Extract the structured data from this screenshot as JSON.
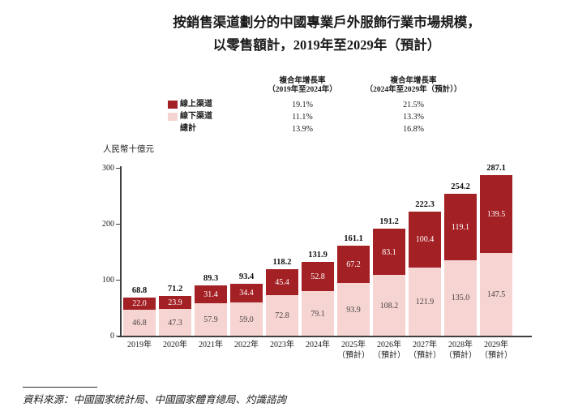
{
  "title": {
    "line1": "按銷售渠道劃分的中國專業戶外服飾行業市場規模，",
    "line2": "以零售額計，2019年至2029年（預計）"
  },
  "cagr_table": {
    "col1_header_line1": "複合年增長率",
    "col1_header_line2": "（2019年至2024年）",
    "col2_header_line1": "複合年增長率",
    "col2_header_line2": "（2024年至2029年（預計））",
    "rows": [
      {
        "label": "線上渠道",
        "swatch_color": "#A32025",
        "cagr_2019_2024": "19.1%",
        "cagr_2024_2029": "21.5%"
      },
      {
        "label": "線下渠道",
        "swatch_color": "#F5D4D2",
        "cagr_2019_2024": "11.1%",
        "cagr_2024_2029": "13.3%"
      },
      {
        "label": "總計",
        "swatch_color": "",
        "cagr_2019_2024": "13.9%",
        "cagr_2024_2029": "16.8%"
      }
    ]
  },
  "chart_data": {
    "type": "bar",
    "subtype": "stacked",
    "unit_label": "人民幣十億元",
    "ylim": [
      0,
      300
    ],
    "yticks": [
      0,
      100,
      200,
      300
    ],
    "grid": false,
    "legend_position": "top-left",
    "categories": [
      {
        "label": "2019年",
        "sublabel": ""
      },
      {
        "label": "2020年",
        "sublabel": ""
      },
      {
        "label": "2021年",
        "sublabel": ""
      },
      {
        "label": "2022年",
        "sublabel": ""
      },
      {
        "label": "2023年",
        "sublabel": ""
      },
      {
        "label": "2024年",
        "sublabel": ""
      },
      {
        "label": "2025年",
        "sublabel": "（預計）"
      },
      {
        "label": "2026年",
        "sublabel": "（預計）"
      },
      {
        "label": "2027年",
        "sublabel": "（預計）"
      },
      {
        "label": "2028年",
        "sublabel": "（預計）"
      },
      {
        "label": "2029年",
        "sublabel": "（預計）"
      }
    ],
    "series": [
      {
        "name": "線上渠道",
        "color": "#A32025",
        "label_color": "#FFFFFF",
        "values": [
          22.0,
          23.9,
          31.4,
          34.4,
          45.4,
          52.8,
          67.2,
          83.1,
          100.4,
          119.1,
          139.5
        ]
      },
      {
        "name": "線下渠道",
        "color": "#F5D4D2",
        "label_color": "#4A4444",
        "values": [
          46.8,
          47.3,
          57.9,
          59.0,
          72.8,
          79.1,
          93.9,
          108.2,
          121.9,
          135.0,
          147.5
        ]
      }
    ],
    "totals": [
      68.8,
      71.2,
      89.3,
      93.4,
      118.2,
      131.9,
      161.1,
      191.2,
      222.3,
      254.2,
      287.1
    ]
  },
  "source": "資料來源：中國國家統計局、中國國家體育總局、灼識諮詢"
}
